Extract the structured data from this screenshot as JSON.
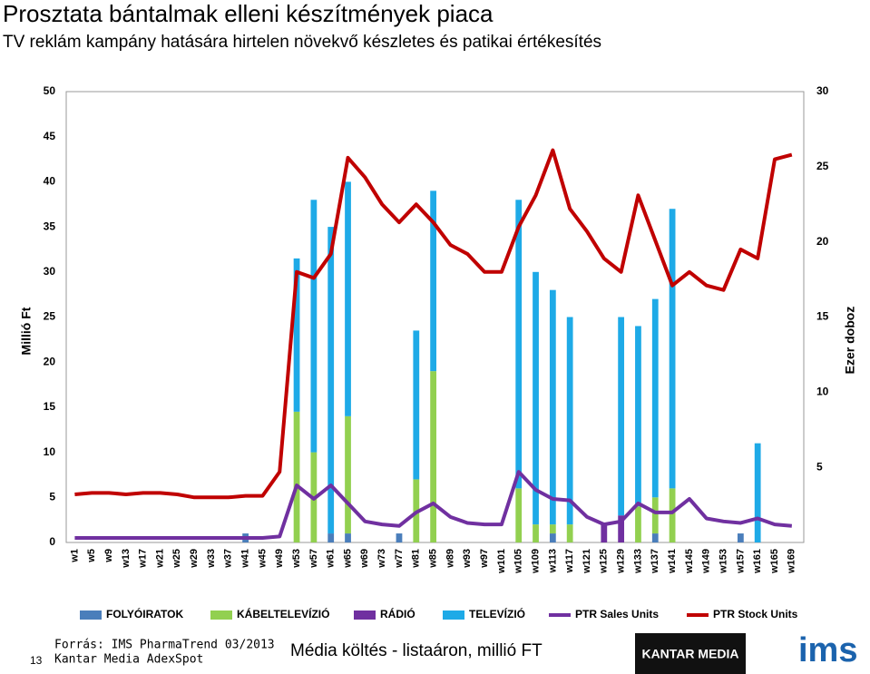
{
  "chart_data": {
    "type": "bar",
    "stacked": true,
    "title": "Prosztata bántalmak elleni készítmények piaca",
    "subtitle": "TV reklám kampány hatására hirtelen növekvő készletes és patikai értékesítés",
    "y_label": "Millió Ft",
    "y2_label": "Ezer doboz",
    "categories": [
      "w1",
      "w5",
      "w9",
      "w13",
      "w17",
      "w21",
      "w25",
      "w29",
      "w33",
      "w37",
      "w41",
      "w45",
      "w49",
      "w53",
      "w57",
      "w61",
      "w65",
      "w69",
      "w73",
      "w77",
      "w81",
      "w85",
      "w89",
      "w93",
      "w97",
      "w101",
      "w105",
      "w109",
      "w113",
      "w117",
      "w121",
      "w125",
      "w129",
      "w133",
      "w137",
      "w141",
      "w145",
      "w149",
      "w153",
      "w157",
      "w161",
      "w165",
      "w169"
    ],
    "ylim": [
      0,
      50
    ],
    "yticks": [
      0,
      5,
      10,
      15,
      20,
      25,
      30,
      35,
      40,
      45,
      50
    ],
    "y2lim": [
      0,
      30
    ],
    "y2ticks": [
      5,
      10,
      15,
      20,
      25,
      30
    ],
    "series": [
      {
        "name": "FOLYÓIRATOK",
        "type": "bar",
        "color": "#4a7ebb",
        "values": [
          0,
          0,
          0,
          0,
          0,
          0,
          0,
          0,
          0,
          0,
          1,
          0,
          0,
          0,
          0,
          1,
          1,
          0,
          0,
          1,
          0,
          0,
          0,
          0,
          0,
          0,
          0,
          0,
          1,
          0,
          0,
          0,
          0,
          0,
          1,
          0,
          0,
          0,
          0,
          1,
          0,
          0,
          0
        ]
      },
      {
        "name": "KÁBELTELEVÍZIÓ",
        "type": "bar",
        "color": "#92d050",
        "values": [
          0,
          0,
          0,
          0,
          0,
          0,
          0,
          0,
          0,
          0,
          0,
          0,
          0,
          14.5,
          10,
          0,
          13,
          0,
          0,
          0,
          7,
          19,
          0,
          0,
          0,
          0,
          6,
          2,
          1,
          2,
          0,
          0,
          0,
          4,
          4,
          6,
          0,
          0,
          0,
          0,
          0,
          0,
          0
        ]
      },
      {
        "name": "RÁDIÓ",
        "type": "bar",
        "color": "#7030a0",
        "values": [
          0,
          0,
          0,
          0,
          0,
          0,
          0,
          0,
          0,
          0,
          0,
          0,
          0,
          0,
          0,
          0,
          0,
          0,
          0,
          0,
          0,
          0,
          0,
          0,
          0,
          0,
          0,
          0,
          0,
          0,
          0,
          2,
          3,
          0,
          0,
          0,
          0,
          0,
          0,
          0,
          0,
          0,
          0
        ]
      },
      {
        "name": "TELEVÍZIÓ",
        "type": "bar",
        "color": "#1eaae7",
        "values": [
          0,
          0,
          0,
          0,
          0,
          0,
          0,
          0,
          0,
          0,
          0,
          0,
          0,
          17,
          28,
          34,
          26,
          0,
          0,
          0,
          16.5,
          20,
          0,
          0,
          0,
          0,
          32,
          28,
          26,
          23,
          0,
          0,
          22,
          20,
          22,
          31,
          0,
          0,
          0,
          0,
          11,
          0,
          0
        ]
      },
      {
        "name": "PTR Sales Units",
        "type": "line",
        "axis": "y2",
        "color": "#7030a0",
        "values": [
          0.3,
          0.3,
          0.3,
          0.3,
          0.3,
          0.3,
          0.3,
          0.3,
          0.3,
          0.3,
          0.3,
          0.3,
          0.4,
          3.8,
          2.9,
          3.8,
          2.6,
          1.4,
          1.2,
          1.1,
          2.0,
          2.6,
          1.7,
          1.3,
          1.2,
          1.2,
          4.7,
          3.5,
          2.9,
          2.8,
          1.7,
          1.2,
          1.4,
          2.6,
          2.0,
          2.0,
          2.9,
          1.6,
          1.4,
          1.3,
          1.6,
          1.2,
          1.1
        ]
      },
      {
        "name": "PTR Stock Units",
        "type": "line",
        "axis": "y2",
        "color": "#c00000",
        "values": [
          3.2,
          3.3,
          3.3,
          3.2,
          3.3,
          3.3,
          3.2,
          3.0,
          3.0,
          3.0,
          3.1,
          3.1,
          4.7,
          18,
          17.6,
          19.2,
          25.6,
          24.3,
          22.5,
          21.3,
          22.5,
          21.3,
          19.8,
          19.2,
          18,
          18,
          21,
          23.1,
          26.1,
          22.2,
          20.7,
          18.9,
          18,
          23.1,
          20.1,
          17.1,
          18,
          17.1,
          16.8,
          19.5,
          18.9,
          25.5,
          25.8
        ]
      }
    ]
  },
  "footer": {
    "page_number": "13",
    "source_line1": "Forrás: IMS PharmaTrend 03/2013",
    "source_line2": "Kantar Media AdexSpot",
    "caption": "Média költés - listaáron, millió FT",
    "logo_kantar": "KANTAR MEDIA",
    "logo_ims": "ims"
  }
}
